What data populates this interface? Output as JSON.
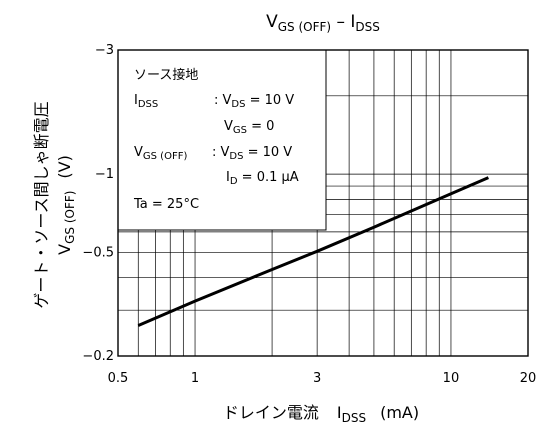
{
  "chart_data": {
    "type": "line",
    "title": {
      "main": "V",
      "main_sub": "GS (OFF)",
      "sep": " – I",
      "sep_sub": "DSS"
    },
    "xlabel": {
      "text": "ドレイン電流",
      "sym": "I",
      "sym_sub": "DSS",
      "unit": "(mA)"
    },
    "ylabel": {
      "jp": "ゲート・ソース間しゃ断電圧",
      "sym": "V",
      "sym_sub": "GS (OFF)",
      "unit": "(V)"
    },
    "x_scale": "log",
    "y_scale": "log",
    "xlim": [
      0.5,
      20
    ],
    "ylim": [
      -0.2,
      -3
    ],
    "x_ticks": [
      {
        "v": 0.5,
        "label": "0.5"
      },
      {
        "v": 1,
        "label": "1"
      },
      {
        "v": 3,
        "label": "3"
      },
      {
        "v": 10,
        "label": "10"
      },
      {
        "v": 20,
        "label": "20"
      }
    ],
    "y_ticks": [
      {
        "v": -0.2,
        "label": "−0.2"
      },
      {
        "v": -0.5,
        "label": "−0.5"
      },
      {
        "v": -1,
        "label": "−1"
      },
      {
        "v": -3,
        "label": "−3"
      }
    ],
    "grid": true,
    "series": [
      {
        "x": [
          0.6,
          1,
          2,
          3,
          5,
          10,
          14
        ],
        "y": [
          -0.262,
          -0.325,
          -0.43,
          -0.505,
          -0.625,
          -0.84,
          -0.97
        ]
      }
    ],
    "conditions": {
      "heading": "ソース接地",
      "rows": [
        {
          "a": "I",
          "a_sub": "DSS",
          "b": ": V",
          "b_sub": "DS",
          "c": " = 10 V"
        },
        {
          "a": "",
          "a_sub": "",
          "b": "V",
          "b_sub": "GS",
          "c": " = 0"
        },
        {
          "a": "V",
          "a_sub": "GS (OFF)",
          "b": ": V",
          "b_sub": "DS",
          "c": " = 10 V"
        },
        {
          "a": "",
          "a_sub": "",
          "b": "I",
          "b_sub": "D",
          "c": " = 0.1 μA"
        },
        {
          "a": "Ta = 25°C",
          "a_sub": "",
          "b": "",
          "b_sub": "",
          "c": ""
        }
      ]
    },
    "colors": {
      "line": "#000000",
      "grid": "#000000",
      "background": "#ffffff"
    }
  }
}
